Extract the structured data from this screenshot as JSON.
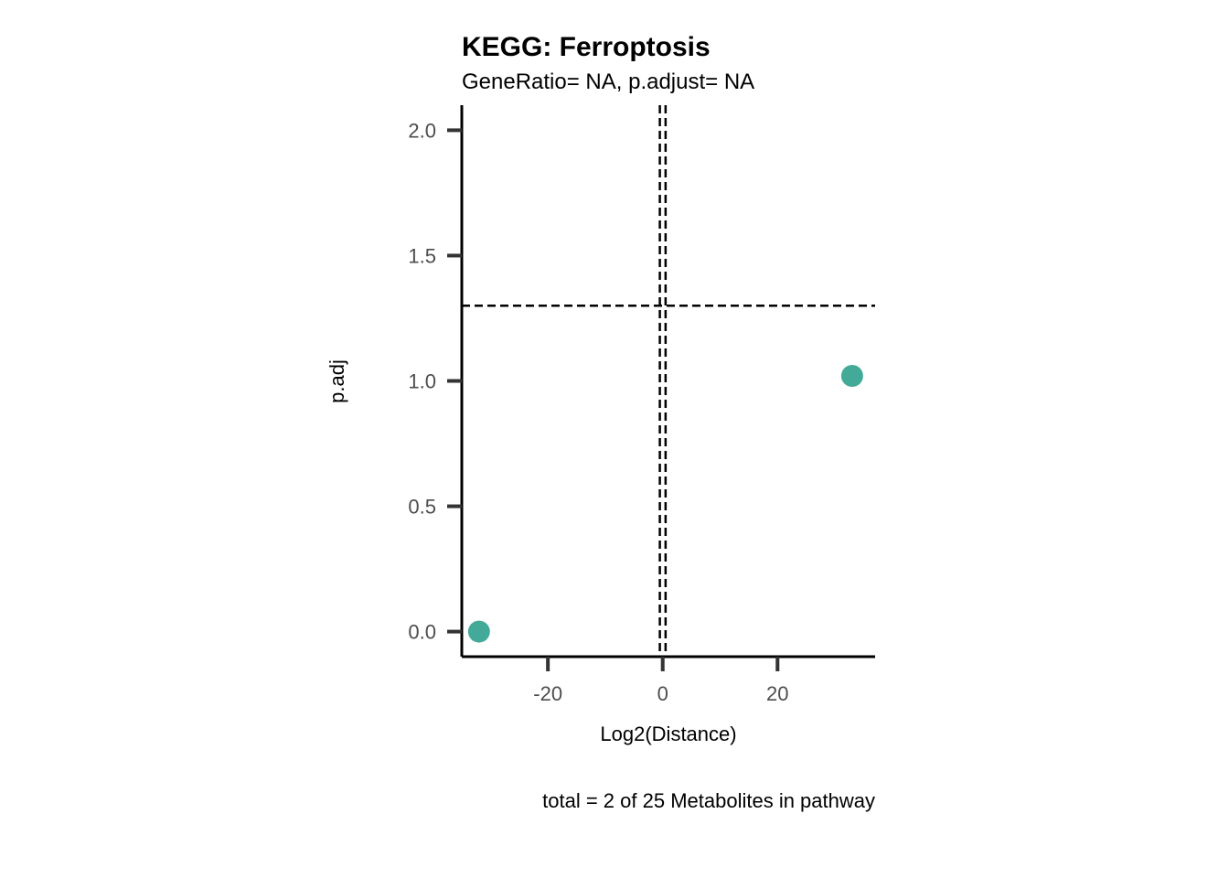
{
  "chart_data": {
    "type": "scatter",
    "title": "KEGG: Ferroptosis",
    "subtitle": "GeneRatio= NA, p.adjust= NA",
    "xlabel": "Log2(Distance)",
    "ylabel": "p.adj",
    "caption": "total = 2 of 25 Metabolites in pathway",
    "xlim": [
      -35,
      37
    ],
    "ylim": [
      -0.1,
      2.1
    ],
    "x_ticks": [
      -20,
      0,
      20
    ],
    "x_tick_labels": [
      "-20",
      "0",
      "20"
    ],
    "y_ticks": [
      0,
      0.5,
      1,
      1.5,
      2
    ],
    "y_tick_labels": [
      "0.0",
      "0.5",
      "1.0",
      "1.5",
      "2.0"
    ],
    "grid": false,
    "point_color": "#43AA9A",
    "points": [
      {
        "x": -32,
        "y": 0.0
      },
      {
        "x": 33,
        "y": 1.02
      }
    ],
    "reference_lines": {
      "vertical": [
        -0.5,
        0.5
      ],
      "horizontal": [
        1.3
      ]
    }
  }
}
